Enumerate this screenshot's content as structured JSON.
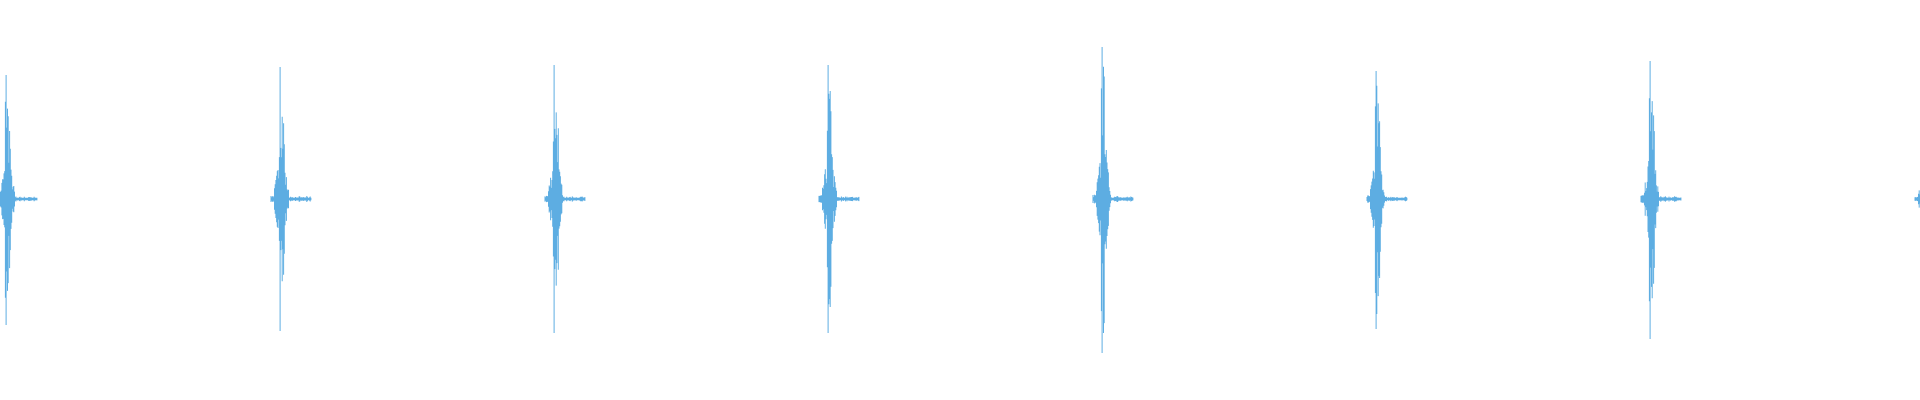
{
  "chart_data": {
    "type": "line",
    "subtype": "audio-waveform",
    "title": "",
    "xlabel": "",
    "ylabel": "",
    "axes_visible": false,
    "grid": false,
    "ylim": [
      -1,
      1
    ],
    "color": "#5dade2",
    "background": "#ffffff",
    "bursts": [
      {
        "onset": 0,
        "peak_pos": 0.62,
        "peak_neg": -0.63
      },
      {
        "onset": 1,
        "peak_pos": 0.66,
        "peak_neg": -0.66
      },
      {
        "onset": 2,
        "peak_pos": 0.67,
        "peak_neg": -0.67
      },
      {
        "onset": 3,
        "peak_pos": 0.67,
        "peak_neg": -0.67
      },
      {
        "onset": 4,
        "peak_pos": 0.76,
        "peak_neg": -0.77
      },
      {
        "onset": 5,
        "peak_pos": 0.64,
        "peak_neg": -0.65
      },
      {
        "onset": 6,
        "peak_pos": 0.69,
        "peak_neg": -0.7
      },
      {
        "onset": 7,
        "peak_pos": 0.37,
        "peak_neg": -0.37
      }
    ],
    "onset_unit": "burst period"
  }
}
